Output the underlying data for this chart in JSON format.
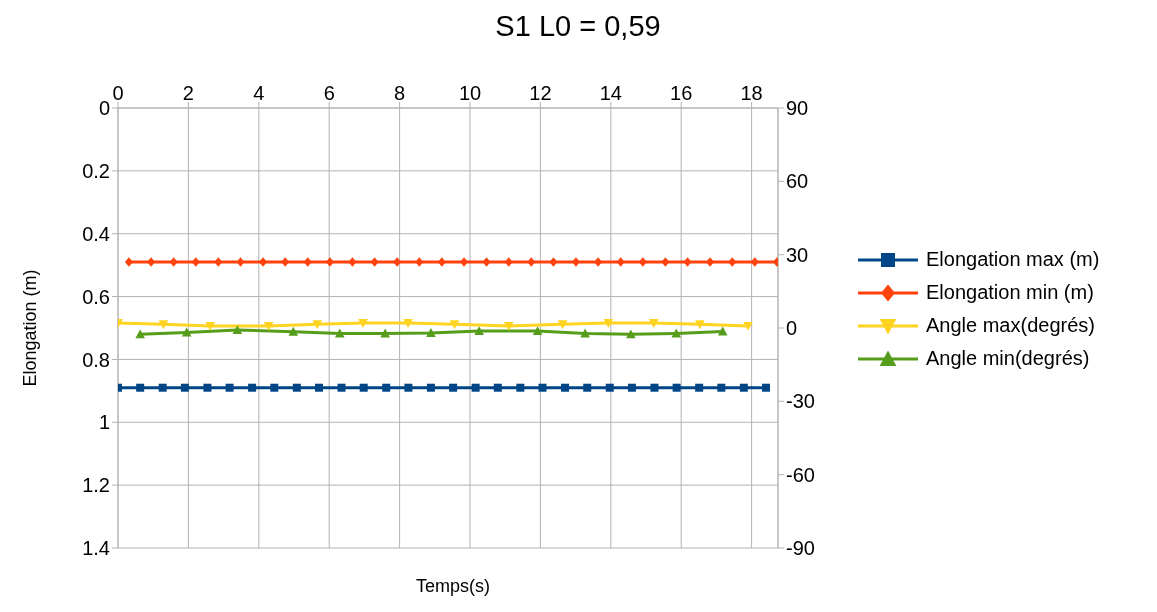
{
  "chart_data": {
    "type": "line",
    "title": "S1 L0 = 0,59",
    "xlabel": "Temps(s)",
    "ylabel": "Elongation (m)",
    "xlim": [
      0,
      18.75
    ],
    "xticks": [
      0,
      2,
      4,
      6,
      8,
      10,
      12,
      14,
      16,
      18
    ],
    "ylim": [
      1.4,
      0
    ],
    "yticks": [
      0,
      0.2,
      0.4,
      0.6,
      0.8,
      1,
      1.2,
      1.4
    ],
    "y2lim": [
      -90,
      90
    ],
    "y2ticks": [
      -90,
      -60,
      -30,
      0,
      30,
      60,
      90
    ],
    "grid": true,
    "legend": "right",
    "line_style": "solid",
    "series": [
      {
        "name": "Elongation max (m)",
        "color": "#004586",
        "marker": "square",
        "x": [
          0,
          0.63,
          1.27,
          1.9,
          2.54,
          3.17,
          3.81,
          4.44,
          5.08,
          5.71,
          6.35,
          6.98,
          7.62,
          8.25,
          8.89,
          9.52,
          10.16,
          10.79,
          11.43,
          12.06,
          12.7,
          13.33,
          13.97,
          14.6,
          15.24,
          15.87,
          16.51,
          17.14,
          17.78,
          18.41
        ],
        "values": [
          0.89,
          0.89,
          0.89,
          0.89,
          0.89,
          0.89,
          0.89,
          0.89,
          0.89,
          0.89,
          0.89,
          0.89,
          0.89,
          0.89,
          0.89,
          0.89,
          0.89,
          0.89,
          0.89,
          0.89,
          0.89,
          0.89,
          0.89,
          0.89,
          0.89,
          0.89,
          0.89,
          0.89,
          0.89,
          0.89
        ]
      },
      {
        "name": "Elongation min (m)",
        "color": "#ff420e",
        "marker": "diamond",
        "x": [
          0.31,
          0.94,
          1.58,
          2.21,
          2.85,
          3.48,
          4.12,
          4.75,
          5.39,
          6.02,
          6.66,
          7.29,
          7.93,
          8.56,
          9.2,
          9.83,
          10.47,
          11.1,
          11.74,
          12.37,
          13.01,
          13.64,
          14.28,
          14.91,
          15.55,
          16.18,
          16.82,
          17.45,
          18.09,
          18.72
        ],
        "values": [
          0.49,
          0.49,
          0.49,
          0.49,
          0.49,
          0.49,
          0.49,
          0.49,
          0.49,
          0.49,
          0.49,
          0.49,
          0.49,
          0.49,
          0.49,
          0.49,
          0.49,
          0.49,
          0.49,
          0.49,
          0.49,
          0.49,
          0.49,
          0.49,
          0.49,
          0.49,
          0.49,
          0.49,
          0.49,
          0.49
        ]
      },
      {
        "name": "Angle max(degrés)",
        "color": "#ffd320",
        "marker": "triangle_down",
        "axis": "y2",
        "x": [
          0,
          1.29,
          2.62,
          4.28,
          5.66,
          6.96,
          8.24,
          9.56,
          11.1,
          12.63,
          13.93,
          15.22,
          16.53,
          17.9
        ],
        "values": [
          2,
          1.5,
          0.8,
          0.8,
          1.5,
          2,
          2,
          1.5,
          0.8,
          1.5,
          2,
          2,
          1.5,
          0.8
        ]
      },
      {
        "name": "Angle min(degrés)",
        "color": "#579d1c",
        "marker": "triangle",
        "axis": "y2",
        "x": [
          0.63,
          1.95,
          3.39,
          4.98,
          6.3,
          7.59,
          8.89,
          10.26,
          11.92,
          13.27,
          14.57,
          15.86,
          17.18
        ],
        "values": [
          -2.6,
          -1.8,
          -0.8,
          -1.5,
          -2.2,
          -2.2,
          -2,
          -1.2,
          -1.2,
          -2.2,
          -2.6,
          -2.2,
          -1.4
        ]
      }
    ]
  }
}
